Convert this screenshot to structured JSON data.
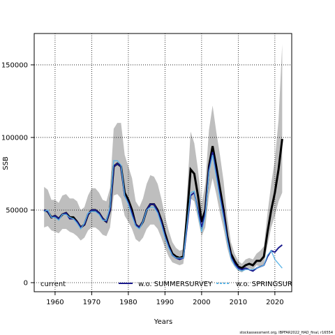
{
  "chart_data": {
    "type": "line",
    "xlabel": "Years",
    "ylabel": "SSB",
    "footer": "stockassessment.org, IBPFAR2022_HAD_final, r16554",
    "x": [
      1957,
      1958,
      1959,
      1960,
      1961,
      1962,
      1963,
      1964,
      1965,
      1966,
      1967,
      1968,
      1969,
      1970,
      1971,
      1972,
      1973,
      1974,
      1975,
      1976,
      1977,
      1978,
      1979,
      1980,
      1981,
      1982,
      1983,
      1984,
      1985,
      1986,
      1987,
      1988,
      1989,
      1990,
      1991,
      1992,
      1993,
      1994,
      1995,
      1996,
      1997,
      1998,
      1999,
      2000,
      2001,
      2002,
      2003,
      2004,
      2005,
      2006,
      2007,
      2008,
      2009,
      2010,
      2011,
      2012,
      2013,
      2014,
      2015,
      2016,
      2017,
      2018,
      2019,
      2020,
      2021,
      2022
    ],
    "band": {
      "color": "#bebebe",
      "upper": [
        66000,
        64000,
        57000,
        57000,
        55000,
        60000,
        61000,
        58000,
        58000,
        56000,
        50000,
        52000,
        60000,
        65000,
        65000,
        62000,
        57000,
        56000,
        65000,
        106000,
        110000,
        110000,
        88000,
        80000,
        72000,
        56000,
        52000,
        58000,
        68000,
        74000,
        73000,
        68000,
        58000,
        46000,
        36000,
        28000,
        24000,
        22000,
        23000,
        60000,
        104000,
        96000,
        78000,
        54000,
        68000,
        105000,
        122000,
        104000,
        88000,
        70000,
        45000,
        28000,
        20000,
        15000,
        13000,
        16000,
        17000,
        16000,
        20000,
        22000,
        25000,
        48000,
        68000,
        85000,
        112000,
        164000
      ],
      "lower": [
        38000,
        39000,
        36000,
        35000,
        34000,
        37000,
        37000,
        35000,
        34000,
        32000,
        29000,
        31000,
        36000,
        38000,
        38000,
        36000,
        33000,
        32000,
        38000,
        60000,
        61000,
        58000,
        46000,
        42000,
        37000,
        30000,
        28000,
        31000,
        37000,
        40000,
        40000,
        37000,
        31000,
        24000,
        18000,
        14000,
        13000,
        12000,
        13000,
        34000,
        58000,
        56000,
        44000,
        32000,
        38000,
        60000,
        72000,
        61000,
        48000,
        37000,
        24000,
        15000,
        11000,
        8000,
        7000,
        9000,
        10000,
        9000,
        12000,
        11000,
        13000,
        26000,
        38000,
        46000,
        56000,
        62000
      ]
    },
    "series": [
      {
        "name": "current",
        "color": "#000000",
        "values": [
          50000,
          49000,
          45000,
          46000,
          44000,
          47000,
          48000,
          45000,
          45000,
          42000,
          38000,
          40000,
          47000,
          50000,
          50000,
          48000,
          44000,
          42000,
          50000,
          80000,
          82000,
          80000,
          62000,
          57000,
          50000,
          40000,
          38000,
          42000,
          50000,
          54000,
          54000,
          50000,
          43000,
          34000,
          26000,
          20000,
          18000,
          17000,
          18000,
          45000,
          78000,
          75000,
          60000,
          42000,
          50000,
          80000,
          94000,
          80000,
          65000,
          50000,
          32000,
          20000,
          15000,
          11000,
          10000,
          12000,
          13000,
          12000,
          15000,
          15000,
          18000,
          35000,
          50000,
          62000,
          78000,
          99000
        ]
      },
      {
        "name": "w.o. SUMMERSURVEY",
        "color": "#1a1a8c",
        "values": [
          50000,
          49000,
          45000,
          46000,
          44000,
          47000,
          48000,
          44000,
          44000,
          42000,
          38000,
          40000,
          47000,
          50000,
          50000,
          48000,
          44000,
          42000,
          50000,
          80000,
          82000,
          80000,
          60000,
          55000,
          48000,
          40000,
          38000,
          42000,
          50000,
          54000,
          54000,
          49000,
          42000,
          32000,
          25000,
          19000,
          17000,
          16000,
          17000,
          38000,
          60000,
          62000,
          50000,
          38000,
          48000,
          78000,
          90000,
          75000,
          60000,
          47000,
          30000,
          18000,
          13000,
          10000,
          9000,
          10000,
          9000,
          8000,
          10000,
          11000,
          12000,
          18000,
          22000,
          21000,
          24000,
          26000
        ]
      },
      {
        "name": "w.o. SPRINGSURVEY",
        "color": "#5ab4e6",
        "values": [
          49000,
          50000,
          45000,
          45000,
          43000,
          47000,
          47000,
          45000,
          44000,
          41000,
          37000,
          41000,
          48000,
          49000,
          49000,
          47000,
          43000,
          43000,
          52000,
          84000,
          84000,
          81000,
          60000,
          54000,
          46000,
          39000,
          37000,
          42000,
          50000,
          52000,
          52000,
          48000,
          40000,
          31000,
          24000,
          19000,
          17000,
          17000,
          17000,
          40000,
          62000,
          63000,
          48000,
          35000,
          46000,
          76000,
          88000,
          73000,
          58000,
          44000,
          29000,
          17000,
          12000,
          9000,
          8000,
          9000,
          9000,
          9000,
          10000,
          11000,
          12000,
          19000,
          22000,
          16000,
          13000,
          10000
        ]
      }
    ],
    "xlim": [
      1954.3,
      2024.6
    ],
    "ylim": [
      -6250,
      171600
    ],
    "xticks": [
      1960,
      1970,
      1980,
      1990,
      2000,
      2010,
      2020
    ],
    "yticks": [
      0,
      50000,
      100000,
      150000
    ],
    "grid": true,
    "legend": "bottom"
  }
}
